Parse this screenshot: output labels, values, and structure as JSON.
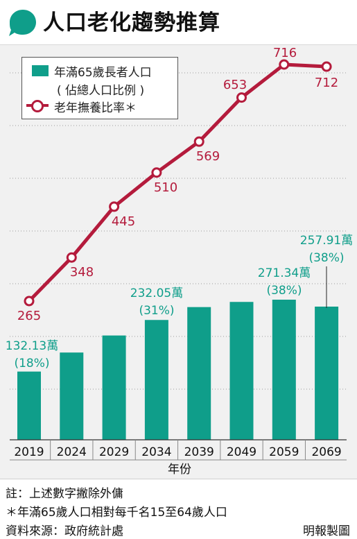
{
  "header": {
    "title": "人口老化趨勢推算"
  },
  "colors": {
    "bar": "#0f9e8a",
    "line": "#b41b3c",
    "annotation": "#0f9e8a",
    "marker_fill": "#ffffff"
  },
  "legend": {
    "bar_label_line1": "年滿65歲長者人口",
    "bar_label_line2": "( 佔總人口比例 )",
    "line_label": "老年撫養比率＊"
  },
  "chart_data": {
    "type": "bar",
    "xlabel": "年份",
    "categories": [
      "2019",
      "2024",
      "2029",
      "2034",
      "2039",
      "2049",
      "2059",
      "2069"
    ],
    "series": [
      {
        "name": "年滿65歲長者人口 ( 佔總人口比例 )",
        "type": "bar",
        "unit": "萬",
        "values": [
          132.13,
          169,
          202,
          232.05,
          257,
          267,
          271.34,
          257.91
        ],
        "labels": [
          {
            "index": 0,
            "value": "132.13萬",
            "share": "(18%)"
          },
          {
            "index": 3,
            "value": "232.05萬",
            "share": "(31%)"
          },
          {
            "index": 6,
            "value": "271.34萬",
            "share": "(38%)"
          },
          {
            "index": 7,
            "value": "257.91萬",
            "share": "(38%)"
          }
        ]
      },
      {
        "name": "老年撫養比率＊",
        "type": "line",
        "values": [
          265,
          348,
          445,
          510,
          569,
          653,
          716,
          712
        ]
      }
    ],
    "bar_ylim": [
      0,
      400
    ],
    "line_ylim": [
      120,
      780
    ],
    "grid": true
  },
  "footer": {
    "note1": "註：上述數字撇除外傭",
    "note2": "＊年滿65歲人口相對每千名15至64歲人口",
    "source": "資料來源：政府統計處",
    "brand": "明報製圖"
  }
}
